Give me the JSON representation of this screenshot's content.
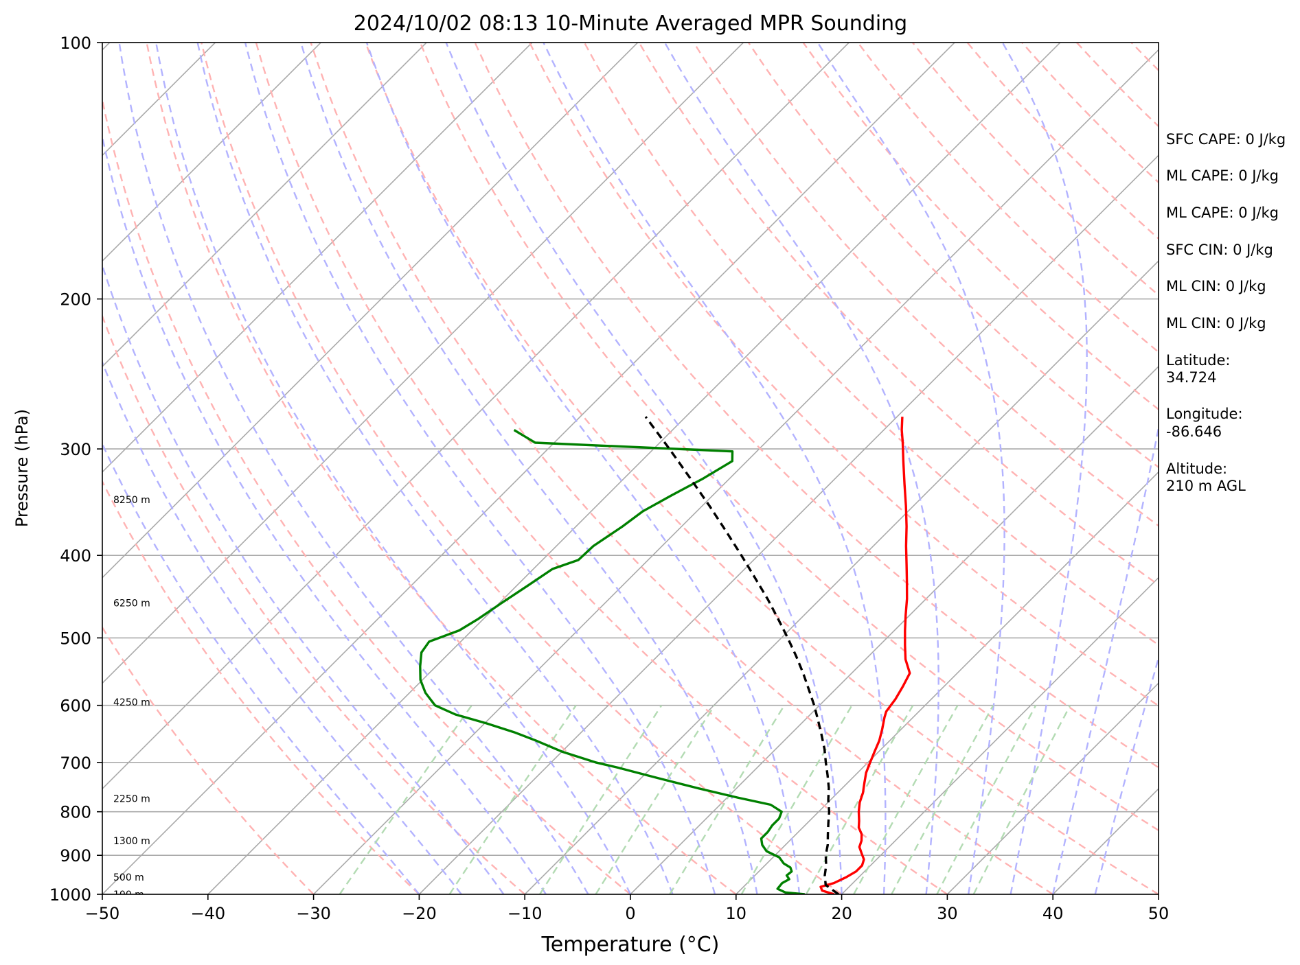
{
  "chart_data": {
    "type": "line",
    "chart_kind": "skew-t log-p diagram",
    "title": "2024/10/02 08:13 10-Minute Averaged MPR Sounding",
    "xlabel": "Temperature (°C)",
    "ylabel": "Pressure (hPa)",
    "xlim": [
      -50,
      50
    ],
    "ylim": [
      1000,
      100
    ],
    "y_scale": "log",
    "x_ticks": [
      "−50",
      "−40",
      "−30",
      "−20",
      "−10",
      "0",
      "10",
      "20",
      "30",
      "40",
      "50"
    ],
    "y_ticks": [
      "100",
      "200",
      "300",
      "400",
      "500",
      "600",
      "700",
      "800",
      "900",
      "1000"
    ],
    "grid": true,
    "background_lines": {
      "isotherms_color": "#aaaaaa",
      "dry_adiabats_color": "#ffb3b3",
      "moist_adiabats_color": "#b3b3ff",
      "mixing_ratio_color": "#b3dbb3"
    },
    "height_labels": [
      {
        "label": "100 m",
        "pressure": 1000
      },
      {
        "label": "500 m",
        "pressure": 955
      },
      {
        "label": "1300 m",
        "pressure": 865
      },
      {
        "label": "2250 m",
        "pressure": 772
      },
      {
        "label": "4250 m",
        "pressure": 595
      },
      {
        "label": "6250 m",
        "pressure": 455
      },
      {
        "label": "8250 m",
        "pressure": 344
      }
    ],
    "series": [
      {
        "role": "temperature",
        "color": "#ff0000",
        "style": "solid",
        "points": [
          [
            1000,
            19.3
          ],
          [
            990,
            17.8
          ],
          [
            980,
            17.3
          ],
          [
            970,
            18.2
          ],
          [
            955,
            18.8
          ],
          [
            940,
            19.2
          ],
          [
            925,
            19.2
          ],
          [
            910,
            18.8
          ],
          [
            895,
            18.0
          ],
          [
            880,
            17.2
          ],
          [
            865,
            16.8
          ],
          [
            850,
            16.2
          ],
          [
            835,
            15.3
          ],
          [
            820,
            14.7
          ],
          [
            800,
            13.8
          ],
          [
            780,
            13.0
          ],
          [
            760,
            12.4
          ],
          [
            740,
            11.6
          ],
          [
            720,
            10.8
          ],
          [
            700,
            10.2
          ],
          [
            680,
            9.6
          ],
          [
            660,
            9.0
          ],
          [
            640,
            8.2
          ],
          [
            620,
            7.3
          ],
          [
            610,
            6.9
          ],
          [
            590,
            6.6
          ],
          [
            570,
            6.1
          ],
          [
            550,
            5.5
          ],
          [
            530,
            3.8
          ],
          [
            510,
            2.4
          ],
          [
            490,
            1.0
          ],
          [
            470,
            -0.4
          ],
          [
            450,
            -1.8
          ],
          [
            430,
            -3.4
          ],
          [
            410,
            -5.1
          ],
          [
            390,
            -6.9
          ],
          [
            370,
            -8.7
          ],
          [
            350,
            -10.7
          ],
          [
            330,
            -12.9
          ],
          [
            310,
            -15.2
          ],
          [
            295,
            -17.0
          ],
          [
            285,
            -18.3
          ],
          [
            275,
            -19.5
          ]
        ]
      },
      {
        "role": "dewpoint",
        "color": "#008000",
        "style": "solid",
        "points": [
          [
            1000,
            16.5
          ],
          [
            995,
            14.5
          ],
          [
            985,
            13.4
          ],
          [
            970,
            13.3
          ],
          [
            960,
            13.6
          ],
          [
            950,
            13.0
          ],
          [
            940,
            13.1
          ],
          [
            930,
            12.6
          ],
          [
            920,
            11.6
          ],
          [
            905,
            10.6
          ],
          [
            890,
            8.8
          ],
          [
            875,
            7.8
          ],
          [
            860,
            7.1
          ],
          [
            845,
            7.1
          ],
          [
            830,
            6.9
          ],
          [
            815,
            6.9
          ],
          [
            800,
            6.5
          ],
          [
            785,
            4.8
          ],
          [
            770,
            1.0
          ],
          [
            750,
            -3.8
          ],
          [
            730,
            -8.5
          ],
          [
            710,
            -13.2
          ],
          [
            700,
            -15.8
          ],
          [
            680,
            -20.0
          ],
          [
            660,
            -23.5
          ],
          [
            645,
            -26.4
          ],
          [
            630,
            -29.8
          ],
          [
            615,
            -33.6
          ],
          [
            600,
            -36.4
          ],
          [
            580,
            -38.5
          ],
          [
            560,
            -40.2
          ],
          [
            540,
            -41.5
          ],
          [
            520,
            -42.7
          ],
          [
            505,
            -43.0
          ],
          [
            490,
            -41.2
          ],
          [
            475,
            -40.5
          ],
          [
            455,
            -39.8
          ],
          [
            435,
            -39.0
          ],
          [
            415,
            -38.2
          ],
          [
            405,
            -36.6
          ],
          [
            390,
            -36.5
          ],
          [
            370,
            -35.6
          ],
          [
            355,
            -35.1
          ],
          [
            340,
            -33.9
          ],
          [
            325,
            -32.5
          ],
          [
            310,
            -31.4
          ],
          [
            302,
            -32.3
          ],
          [
            295,
            -51.8
          ],
          [
            285,
            -55.0
          ]
        ]
      },
      {
        "role": "parcel profile",
        "color": "#000000",
        "style": "dashed",
        "points": [
          [
            1000,
            19.7
          ],
          [
            975,
            17.6
          ],
          [
            950,
            16.6
          ],
          [
            925,
            15.8
          ],
          [
            900,
            14.8
          ],
          [
            875,
            14.0
          ],
          [
            850,
            13.0
          ],
          [
            825,
            12.0
          ],
          [
            800,
            11.0
          ],
          [
            775,
            9.8
          ],
          [
            750,
            8.7
          ],
          [
            725,
            7.4
          ],
          [
            700,
            6.0
          ],
          [
            675,
            4.6
          ],
          [
            650,
            3.0
          ],
          [
            625,
            1.3
          ],
          [
            600,
            -0.5
          ],
          [
            575,
            -2.5
          ],
          [
            550,
            -4.6
          ],
          [
            525,
            -6.9
          ],
          [
            500,
            -9.4
          ],
          [
            475,
            -12.1
          ],
          [
            450,
            -15.0
          ],
          [
            425,
            -18.2
          ],
          [
            400,
            -21.6
          ],
          [
            375,
            -25.3
          ],
          [
            350,
            -29.3
          ],
          [
            325,
            -33.7
          ],
          [
            300,
            -38.5
          ],
          [
            275,
            -43.8
          ]
        ]
      }
    ]
  },
  "side_panel": {
    "sfc_cape": "SFC CAPE: 0 J/kg",
    "ml_cape_1": "ML CAPE: 0 J/kg",
    "ml_cape_2": "ML CAPE: 0 J/kg",
    "sfc_cin": "SFC CIN: 0 J/kg",
    "ml_cin_1": "ML CIN: 0 J/kg",
    "ml_cin_2": "ML CIN: 0 J/kg",
    "latitude_label": "Latitude:",
    "latitude_value": "34.724",
    "longitude_label": "Longitude:",
    "longitude_value": "-86.646",
    "altitude_label": "Altitude:",
    "altitude_value": "210 m AGL"
  }
}
